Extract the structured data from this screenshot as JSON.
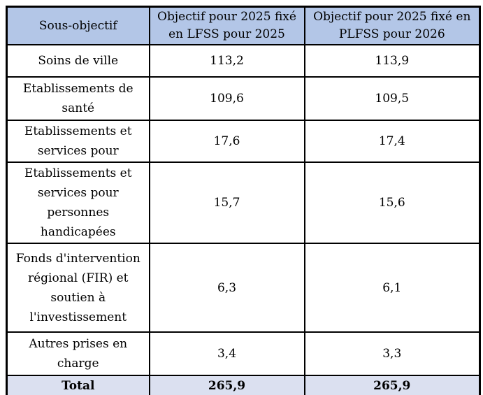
{
  "table": {
    "columns": [
      {
        "header": "Sous-objectif"
      },
      {
        "header": "Objectif pour 2025 fixé\nen LFSS pour 2025"
      },
      {
        "header": "Objectif pour 2025 fixé en\nPLFSS pour 2026"
      }
    ],
    "rows": [
      {
        "label": "Soins de ville",
        "lfss_2025": "113,2",
        "plfss_2026": "113,9"
      },
      {
        "label": "Etablissements de\nsanté",
        "lfss_2025": "109,6",
        "plfss_2026": "109,5"
      },
      {
        "label": "Etablissements et\nservices pour",
        "lfss_2025": "17,6",
        "plfss_2026": "17,4"
      },
      {
        "label": "Etablissements et\nservices pour\npersonnes\nhandicapées",
        "lfss_2025": "15,7",
        "plfss_2026": "15,6"
      },
      {
        "label": "Fonds d'intervention\nrégional (FIR) et\nsoutien à\nl'investissement",
        "lfss_2025": "6,3",
        "plfss_2026": "6,1"
      },
      {
        "label": "Autres prises en\ncharge",
        "lfss_2025": "3,4",
        "plfss_2026": "3,3"
      }
    ],
    "total_row": {
      "label": "Total",
      "lfss_2025": "265,9",
      "plfss_2026": "265,9"
    }
  },
  "colors": {
    "header_background": "#B3C6E7",
    "total_background": "#DBE0F0",
    "border": "#000000",
    "text": "#000000",
    "page_background": "#FFFFFF"
  }
}
